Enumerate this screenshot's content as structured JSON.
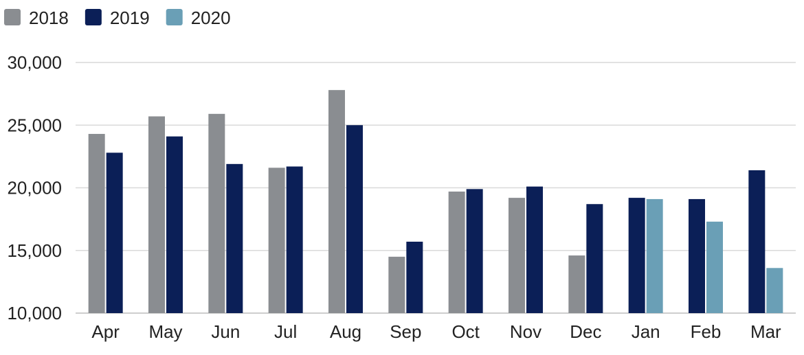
{
  "chart_data": {
    "type": "bar",
    "title": "",
    "xlabel": "",
    "ylabel": "",
    "categories": [
      "Apr",
      "May",
      "Jun",
      "Jul",
      "Aug",
      "Sep",
      "Oct",
      "Nov",
      "Dec",
      "Jan",
      "Feb",
      "Mar"
    ],
    "series": [
      {
        "name": "2018",
        "color": "#8a8d91",
        "values": [
          24300,
          25700,
          25900,
          21600,
          27800,
          14500,
          19700,
          19200,
          14600,
          null,
          null,
          null
        ]
      },
      {
        "name": "2019",
        "color": "#0b1f57",
        "values": [
          22800,
          24100,
          21900,
          21700,
          25000,
          15700,
          19900,
          20100,
          18700,
          19200,
          19100,
          21400
        ]
      },
      {
        "name": "2020",
        "color": "#6a9fb6",
        "values": [
          null,
          null,
          null,
          null,
          null,
          null,
          null,
          null,
          null,
          19100,
          17300,
          13600
        ]
      }
    ],
    "ylim": [
      10000,
      30000
    ],
    "yticks": [
      10000,
      15000,
      20000,
      25000,
      30000
    ],
    "ytick_labels": [
      "10,000",
      "15,000",
      "20,000",
      "25,000",
      "30,000"
    ],
    "grid": true,
    "legend_position": "top-left"
  }
}
